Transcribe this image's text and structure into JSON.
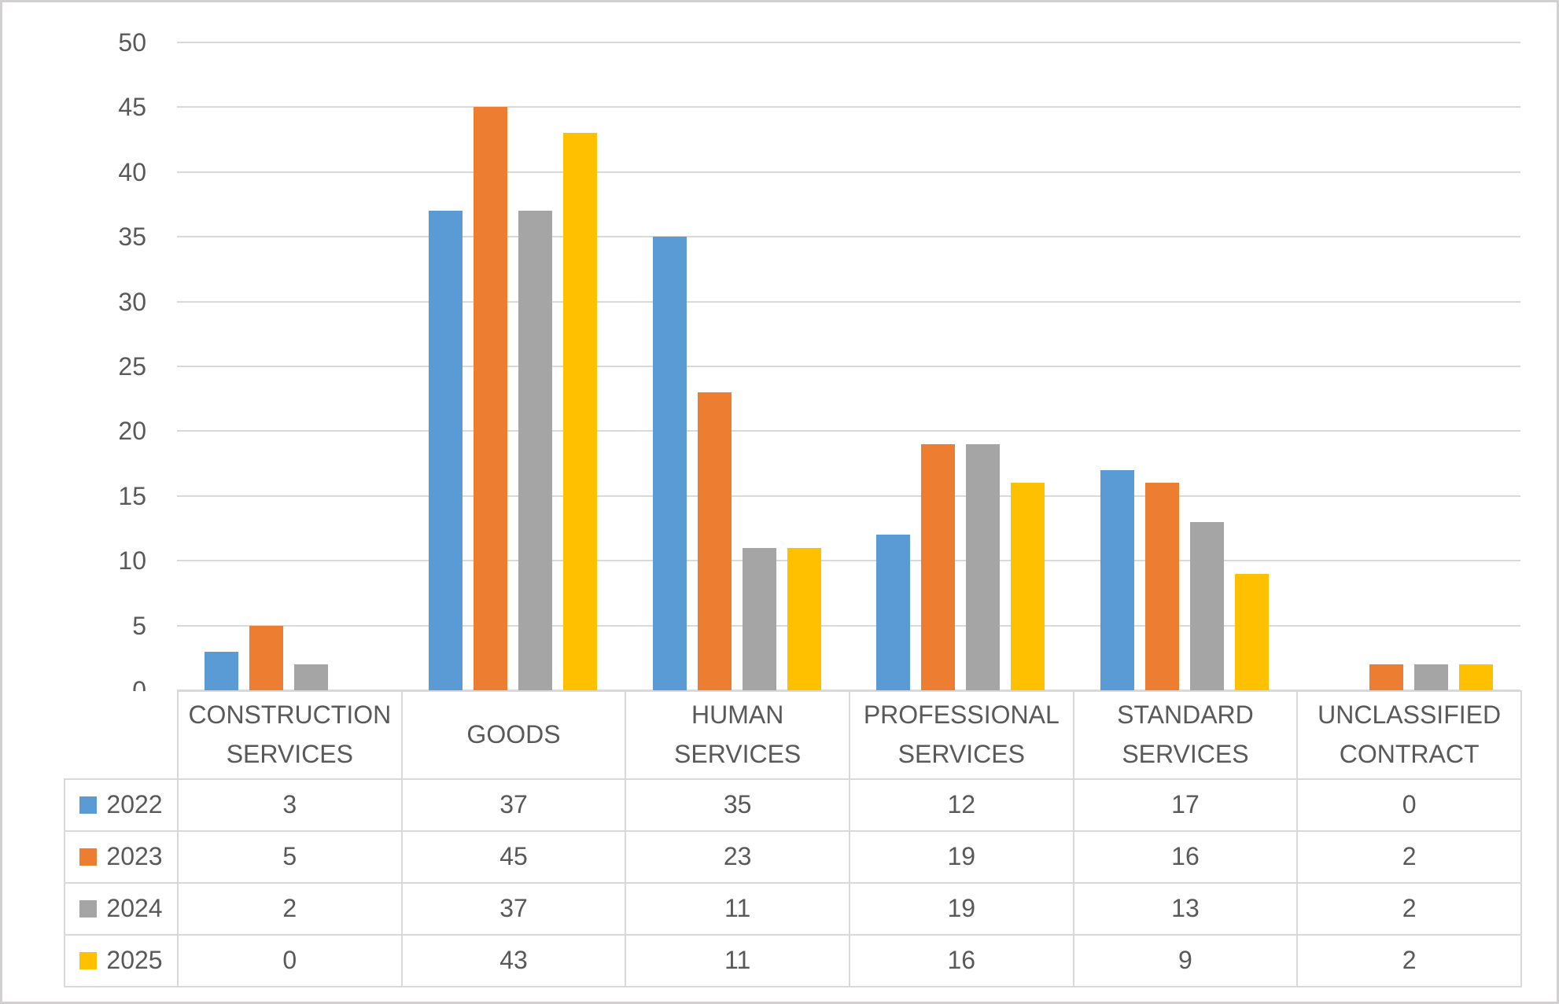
{
  "chart_data": {
    "type": "bar",
    "title": "",
    "xlabel": "",
    "ylabel": "",
    "categories": [
      "CONSTRUCTION SERVICES",
      "GOODS",
      "HUMAN SERVICES",
      "PROFESSIONAL SERVICES",
      "STANDARD SERVICES",
      "UNCLASSIFIED CONTRACT"
    ],
    "series": [
      {
        "name": "2022",
        "color": "#5B9BD5",
        "values": [
          3,
          37,
          35,
          12,
          17,
          0
        ]
      },
      {
        "name": "2023",
        "color": "#ED7D31",
        "values": [
          5,
          45,
          23,
          19,
          16,
          2
        ]
      },
      {
        "name": "2024",
        "color": "#A5A5A5",
        "values": [
          2,
          37,
          11,
          19,
          13,
          2
        ]
      },
      {
        "name": "2025",
        "color": "#FFC000",
        "values": [
          0,
          43,
          11,
          16,
          9,
          2
        ]
      }
    ],
    "ylim": [
      0,
      50
    ],
    "yticks": [
      0,
      5,
      10,
      15,
      20,
      25,
      30,
      35,
      40,
      45,
      50
    ],
    "ytick_step": 5,
    "grid": true,
    "legend_position": "data-table-row-labels",
    "data_table_shown": true
  },
  "theme": {
    "text_color": "#595959",
    "gridline_color": "#D9D9D9",
    "table_border_color": "#D9D9D9",
    "background": "#FFFFFF",
    "frame_border_color": "#D2D0D0"
  }
}
